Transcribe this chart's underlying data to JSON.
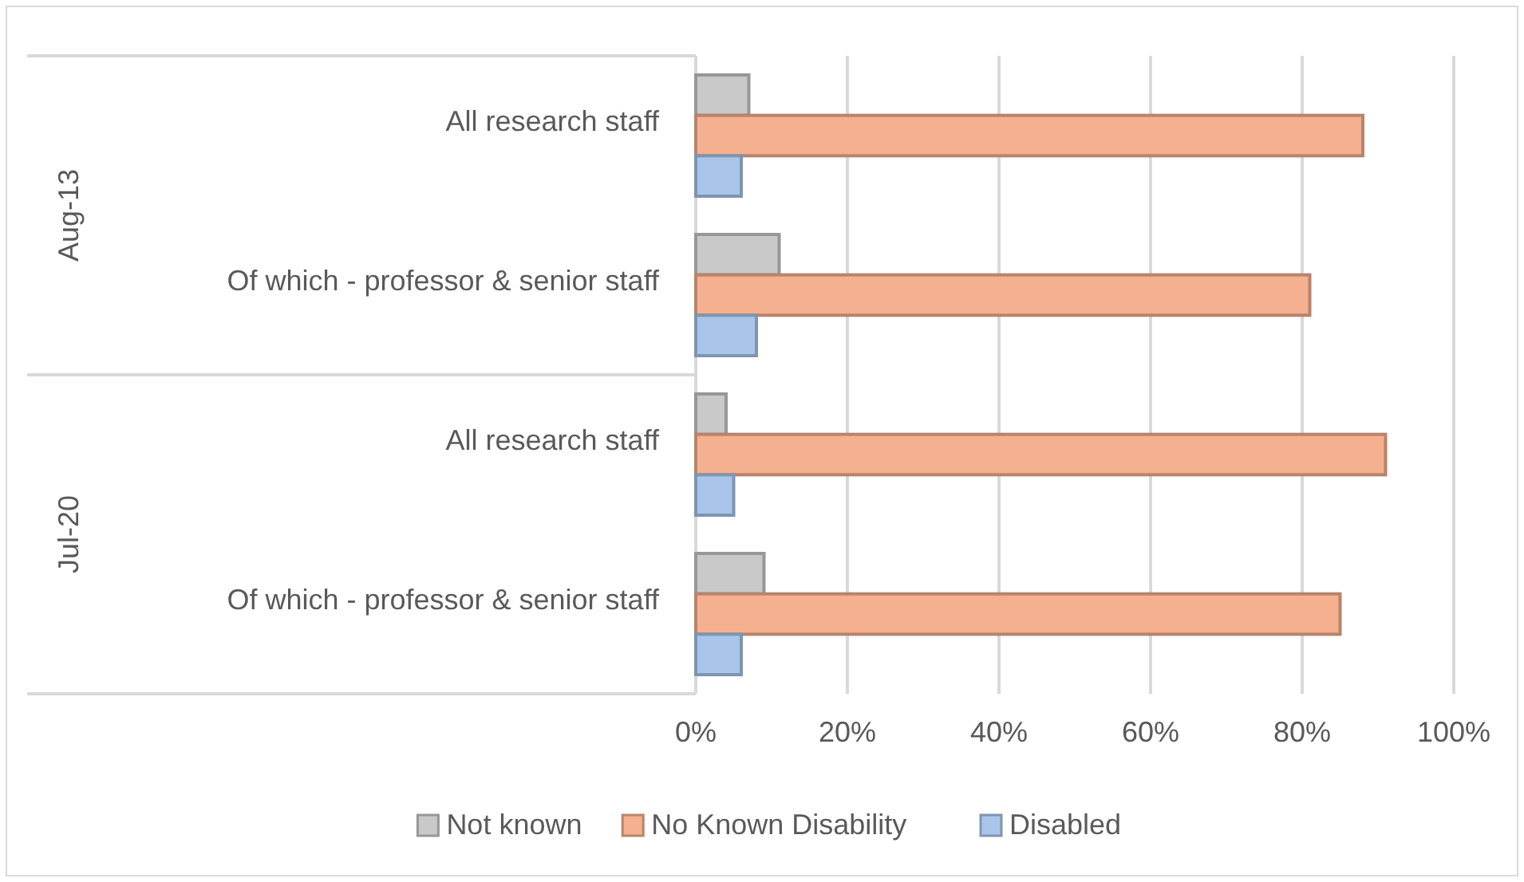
{
  "chart_data": {
    "type": "bar",
    "orientation": "horizontal",
    "categories": [
      "All research staff",
      "Of which - professor & senior staff",
      "All research staff",
      "Of which - professor & senior staff"
    ],
    "annotations": [
      "Aug-13",
      "Jul-20"
    ],
    "series": [
      {
        "name": "Not known",
        "color": "#c9c9c9",
        "values": [
          7,
          11,
          4,
          9
        ]
      },
      {
        "name": "No Known Disability",
        "color": "#f4b08f",
        "values": [
          88,
          81,
          91,
          85
        ]
      },
      {
        "name": "Disabled",
        "color": "#a9c6ea",
        "values": [
          6,
          8,
          5,
          6
        ]
      }
    ],
    "xlim": [
      0,
      100
    ],
    "xticks": [
      {
        "value": 0,
        "label": "0%"
      },
      {
        "value": 20,
        "label": "20%"
      },
      {
        "value": 40,
        "label": "40%"
      },
      {
        "value": 60,
        "label": "60%"
      },
      {
        "value": 80,
        "label": "80%"
      },
      {
        "value": 100,
        "label": "100%"
      }
    ],
    "grid": "x",
    "legend": "bottom"
  }
}
